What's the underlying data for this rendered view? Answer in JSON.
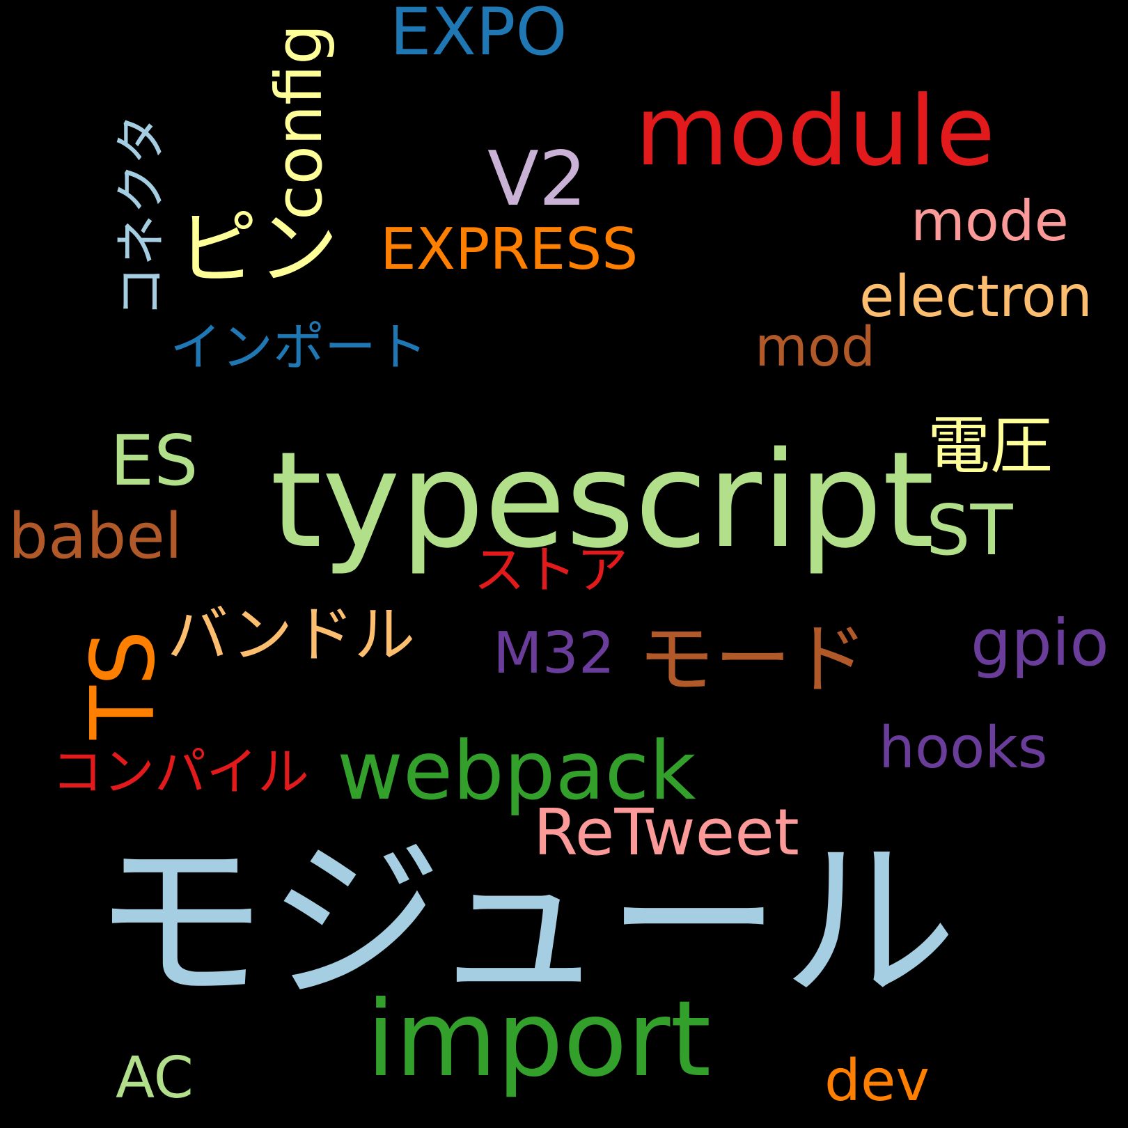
{
  "colors": {
    "background": "#000000",
    "light_blue": "#a6cee3",
    "blue": "#1f78b4",
    "light_green": "#b2df8a",
    "green": "#33a02c",
    "pink": "#fb9a99",
    "red": "#e31a1c",
    "light_orange": "#fdbf6f",
    "orange": "#ff7f00",
    "lavender": "#cab2d6",
    "purple": "#6a3d9a",
    "yellow": "#ffff99",
    "brown": "#b15928"
  },
  "words": {
    "module_jp": {
      "text": "モジュール",
      "color": "#a6cee3"
    },
    "typescript": {
      "text": "typescript",
      "color": "#b2df8a"
    },
    "module_en": {
      "text": "module",
      "color": "#e31a1c"
    },
    "import": {
      "text": "import",
      "color": "#33a02c"
    },
    "webpack": {
      "text": "webpack",
      "color": "#33a02c"
    },
    "ts": {
      "text": "TS",
      "color": "#ff7f00"
    },
    "mode_jp": {
      "text": "モード",
      "color": "#b15928"
    },
    "pin": {
      "text": "ピン",
      "color": "#ffff99"
    },
    "config": {
      "text": "config",
      "color": "#ffff99"
    },
    "express": {
      "text": "EXPRESS",
      "color": "#ff7f00"
    },
    "v2": {
      "text": "V2",
      "color": "#cab2d6"
    },
    "expo": {
      "text": "EXPO",
      "color": "#1f78b4"
    },
    "retweet": {
      "text": "ReTweet",
      "color": "#fb9a99"
    },
    "es": {
      "text": "ES",
      "color": "#b2df8a"
    },
    "babel": {
      "text": "babel",
      "color": "#b15928"
    },
    "electron": {
      "text": "electron",
      "color": "#fdbf6f"
    },
    "mode_en": {
      "text": "mode",
      "color": "#fb9a99"
    },
    "mod": {
      "text": "mod",
      "color": "#b15928"
    },
    "voltage": {
      "text": "電圧",
      "color": "#ffff99"
    },
    "st": {
      "text": "ST",
      "color": "#b2df8a"
    },
    "gpio": {
      "text": "gpio",
      "color": "#6a3d9a"
    },
    "hooks": {
      "text": "hooks",
      "color": "#6a3d9a"
    },
    "m32": {
      "text": "M32",
      "color": "#6a3d9a"
    },
    "bundle": {
      "text": "バンドル",
      "color": "#fdbf6f"
    },
    "compile": {
      "text": "コンパイル",
      "color": "#e31a1c"
    },
    "store": {
      "text": "ストア",
      "color": "#e31a1c"
    },
    "import_jp": {
      "text": "インポート",
      "color": "#1f78b4"
    },
    "connector": {
      "text": "コネクタ",
      "color": "#a6cee3"
    },
    "ac": {
      "text": "AC",
      "color": "#b2df8a"
    },
    "dev": {
      "text": "dev",
      "color": "#ff7f00"
    }
  }
}
